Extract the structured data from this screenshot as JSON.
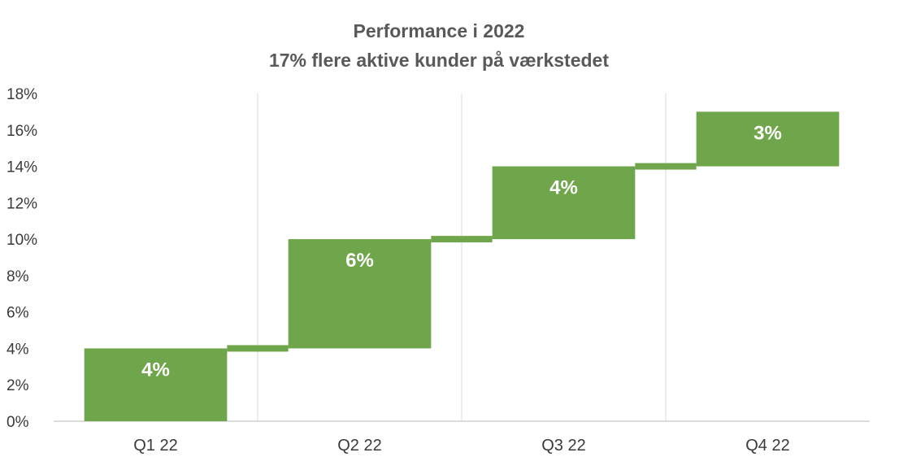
{
  "chart_data": {
    "type": "bar",
    "subtype": "waterfall",
    "title": "Performance i 2022",
    "subtitle": "17% flere aktive kunder på værkstedet",
    "xlabel": "",
    "ylabel": "",
    "categories": [
      "Q1 22",
      "Q2 22",
      "Q3 22",
      "Q4 22"
    ],
    "series": [
      {
        "values": [
          4,
          6,
          4,
          3
        ],
        "start": [
          0,
          4,
          10,
          14
        ]
      }
    ],
    "data_labels": [
      "4%",
      "6%",
      "4%",
      "3%"
    ],
    "ylim": [
      0,
      18
    ],
    "y_ticks": [
      0,
      2,
      4,
      6,
      8,
      10,
      12,
      14,
      16,
      18
    ],
    "y_tick_labels": [
      "0%",
      "2%",
      "4%",
      "6%",
      "8%",
      "10%",
      "12%",
      "14%",
      "16%",
      "18%"
    ],
    "grid": "vertical",
    "legend": "none",
    "colors": {
      "bar": "#70A64B",
      "connector": "#70A64B",
      "title": "#595959"
    }
  }
}
